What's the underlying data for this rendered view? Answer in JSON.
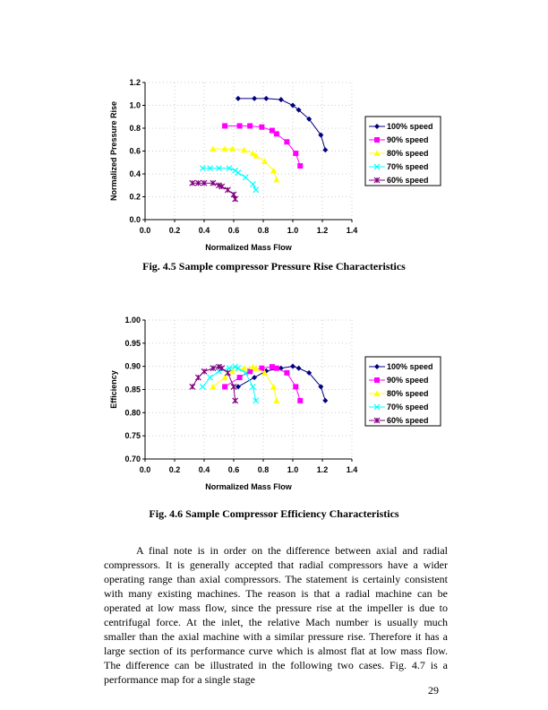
{
  "figures": [
    {
      "caption": "Fig. 4.5    Sample compressor Pressure Rise Characteristics"
    },
    {
      "caption": "Fig. 4.6   Sample Compressor Efficiency Characteristics"
    }
  ],
  "chart_data": [
    {
      "type": "line",
      "xlabel": "Normalized Mass Flow",
      "ylabel": "Normalized Pressure Rise",
      "xlim": [
        0,
        1.4
      ],
      "ylim": [
        0,
        1.2
      ],
      "xticks": [
        "0.0",
        "0.2",
        "0.4",
        "0.6",
        "0.8",
        "1.0",
        "1.2",
        "1.4"
      ],
      "yticks": [
        "0.0",
        "0.2",
        "0.4",
        "0.6",
        "0.8",
        "1.0",
        "1.2"
      ],
      "grid": true,
      "legend": "right",
      "series": [
        {
          "name": "100% speed",
          "color": "#000080",
          "marker": "diamond",
          "x": [
            0.63,
            0.74,
            0.82,
            0.92,
            1.0,
            1.04,
            1.11,
            1.19,
            1.22
          ],
          "y": [
            1.06,
            1.06,
            1.06,
            1.05,
            1.0,
            0.96,
            0.88,
            0.74,
            0.61
          ]
        },
        {
          "name": "90% speed",
          "color": "#ff00ff",
          "marker": "square",
          "x": [
            0.54,
            0.64,
            0.71,
            0.79,
            0.86,
            0.89,
            0.96,
            1.02,
            1.05
          ],
          "y": [
            0.82,
            0.82,
            0.82,
            0.81,
            0.78,
            0.75,
            0.68,
            0.58,
            0.47
          ]
        },
        {
          "name": "80% speed",
          "color": "#ffff00",
          "marker": "triangle",
          "x": [
            0.46,
            0.54,
            0.59,
            0.67,
            0.73,
            0.75,
            0.81,
            0.87,
            0.89
          ],
          "y": [
            0.62,
            0.62,
            0.62,
            0.61,
            0.58,
            0.56,
            0.51,
            0.43,
            0.35
          ]
        },
        {
          "name": "70% speed",
          "color": "#00ffff",
          "marker": "x",
          "x": [
            0.39,
            0.44,
            0.5,
            0.57,
            0.61,
            0.63,
            0.68,
            0.73,
            0.75
          ],
          "y": [
            0.45,
            0.45,
            0.45,
            0.45,
            0.43,
            0.41,
            0.37,
            0.31,
            0.26
          ]
        },
        {
          "name": "60% speed",
          "color": "#800080",
          "marker": "star",
          "x": [
            0.32,
            0.36,
            0.4,
            0.46,
            0.5,
            0.52,
            0.56,
            0.6,
            0.61
          ],
          "y": [
            0.32,
            0.32,
            0.32,
            0.32,
            0.3,
            0.29,
            0.26,
            0.22,
            0.18
          ]
        }
      ]
    },
    {
      "type": "line",
      "xlabel": "Normalized Mass Flow",
      "ylabel": "Efficiency",
      "xlim": [
        0,
        1.4
      ],
      "ylim": [
        0.7,
        1.0
      ],
      "xticks": [
        "0.0",
        "0.2",
        "0.4",
        "0.6",
        "0.8",
        "1.0",
        "1.2",
        "1.4"
      ],
      "yticks": [
        "0.70",
        "0.75",
        "0.80",
        "0.85",
        "0.90",
        "0.95",
        "1.00"
      ],
      "grid": true,
      "legend": "right",
      "series": [
        {
          "name": "100% speed",
          "color": "#000080",
          "marker": "diamond",
          "x": [
            0.63,
            0.74,
            0.82,
            0.92,
            1.0,
            1.04,
            1.11,
            1.19,
            1.22
          ],
          "y": [
            0.856,
            0.876,
            0.89,
            0.896,
            0.9,
            0.896,
            0.886,
            0.856,
            0.826
          ]
        },
        {
          "name": "90% speed",
          "color": "#ff00ff",
          "marker": "square",
          "x": [
            0.54,
            0.64,
            0.71,
            0.79,
            0.86,
            0.89,
            0.96,
            1.02,
            1.05
          ],
          "y": [
            0.856,
            0.876,
            0.889,
            0.896,
            0.899,
            0.896,
            0.886,
            0.856,
            0.826
          ]
        },
        {
          "name": "80% speed",
          "color": "#ffff00",
          "marker": "triangle",
          "x": [
            0.46,
            0.54,
            0.59,
            0.67,
            0.73,
            0.75,
            0.81,
            0.87,
            0.89
          ],
          "y": [
            0.856,
            0.876,
            0.889,
            0.896,
            0.899,
            0.896,
            0.886,
            0.856,
            0.826
          ]
        },
        {
          "name": "70% speed",
          "color": "#00ffff",
          "marker": "x",
          "x": [
            0.39,
            0.44,
            0.5,
            0.57,
            0.61,
            0.63,
            0.68,
            0.73,
            0.75
          ],
          "y": [
            0.856,
            0.876,
            0.889,
            0.896,
            0.899,
            0.896,
            0.886,
            0.856,
            0.826
          ]
        },
        {
          "name": "60% speed",
          "color": "#800080",
          "marker": "star",
          "x": [
            0.32,
            0.36,
            0.4,
            0.46,
            0.5,
            0.52,
            0.56,
            0.6,
            0.61
          ],
          "y": [
            0.856,
            0.876,
            0.889,
            0.896,
            0.899,
            0.896,
            0.886,
            0.856,
            0.826
          ]
        }
      ]
    }
  ],
  "body": {
    "paragraph": "A final note is in order on the difference between axial and radial compressors.  It is generally accepted that radial compressors have a wider operating range than axial compressors.  The statement is certainly consistent with many existing machines.  The reason is that a radial machine can be operated at low mass flow, since the pressure rise at the impeller is due to centrifugal force.  At the inlet, the relative Mach number is usually much smaller than the axial machine with a similar pressure rise.  Therefore it has a large section of its performance curve which is almost flat at low mass flow.  The difference can be illustrated in the following two cases.  Fig. 4.7 is a performance map for a single stage"
  },
  "page_number": "29"
}
